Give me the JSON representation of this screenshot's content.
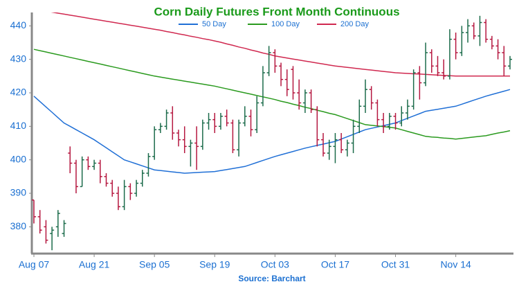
{
  "chart_data": {
    "type": "ohlc",
    "title": "Corn Daily Futures Front Month Continuous",
    "source": "Source: Barchart",
    "categories": [
      "Aug 07",
      null,
      null,
      null,
      null,
      null,
      null,
      null,
      null,
      null,
      "Aug 21",
      null,
      null,
      null,
      null,
      null,
      null,
      null,
      null,
      null,
      "Sep 05",
      null,
      null,
      null,
      null,
      null,
      null,
      null,
      null,
      null,
      "Sep 19",
      null,
      null,
      null,
      null,
      null,
      null,
      null,
      null,
      null,
      "Oct 03",
      null,
      null,
      null,
      null,
      null,
      null,
      null,
      null,
      null,
      "Oct 17",
      null,
      null,
      null,
      null,
      null,
      null,
      null,
      null,
      null,
      "Oct 31",
      null,
      null,
      null,
      null,
      null,
      null,
      null,
      null,
      null,
      "Nov 14",
      null,
      null,
      null,
      null,
      null,
      null,
      null,
      null,
      null
    ],
    "open": [
      388,
      383,
      380,
      378,
      380,
      378,
      402,
      399,
      392,
      400,
      398,
      399,
      395,
      393,
      390,
      386,
      392,
      390,
      393,
      396,
      401,
      409,
      410,
      414,
      408,
      406,
      404,
      405,
      404,
      411,
      412,
      410,
      413,
      411,
      403,
      411,
      413,
      409,
      417,
      426,
      432,
      428,
      424,
      427,
      420,
      417,
      420,
      415,
      406,
      402,
      404,
      406,
      403,
      405,
      410,
      416,
      421,
      417,
      412,
      410,
      413,
      411,
      414,
      416,
      426,
      423,
      432,
      428,
      426,
      425,
      436,
      432,
      438,
      440,
      437,
      441,
      436,
      434,
      432,
      428
    ],
    "high": [
      388,
      385,
      382,
      380,
      385,
      382,
      404,
      400,
      401,
      401,
      400,
      400,
      396,
      394,
      392,
      394,
      393,
      394,
      397,
      402,
      410,
      411,
      415,
      416,
      409,
      410,
      406,
      410,
      412,
      414,
      414,
      414,
      415,
      412,
      412,
      416,
      415,
      419,
      428,
      434,
      433,
      429,
      427,
      428,
      424,
      421,
      421,
      416,
      408,
      406,
      408,
      408,
      406,
      412,
      418,
      424,
      422,
      418,
      414,
      414,
      414,
      416,
      418,
      427,
      428,
      435,
      433,
      431,
      430,
      439,
      438,
      440,
      442,
      441,
      443,
      442,
      437,
      436,
      434,
      431
    ],
    "low": [
      381,
      378,
      375,
      373,
      377,
      377,
      396,
      390,
      392,
      397,
      397,
      393,
      392,
      389,
      385,
      385,
      388,
      389,
      392,
      395,
      400,
      408,
      409,
      406,
      404,
      402,
      398,
      397,
      403,
      409,
      408,
      409,
      410,
      402,
      401,
      410,
      407,
      408,
      416,
      425,
      426,
      422,
      419,
      418,
      415,
      414,
      414,
      404,
      401,
      400,
      399,
      402,
      401,
      402,
      408,
      414,
      415,
      410,
      408,
      409,
      409,
      410,
      412,
      415,
      418,
      422,
      426,
      425,
      424,
      424,
      430,
      431,
      435,
      436,
      434,
      435,
      433,
      430,
      425,
      427
    ],
    "close": [
      383,
      379,
      376,
      379,
      384,
      381,
      399,
      392,
      400,
      398,
      399,
      395,
      393,
      390,
      386,
      392,
      390,
      393,
      396,
      401,
      409,
      410,
      414,
      408,
      406,
      404,
      405,
      404,
      411,
      412,
      410,
      413,
      411,
      403,
      411,
      413,
      409,
      417,
      426,
      432,
      428,
      424,
      421,
      420,
      417,
      420,
      415,
      406,
      402,
      404,
      406,
      403,
      405,
      410,
      416,
      421,
      417,
      412,
      410,
      413,
      411,
      414,
      416,
      426,
      423,
      432,
      428,
      426,
      425,
      436,
      432,
      438,
      440,
      437,
      441,
      436,
      434,
      432,
      428,
      430
    ],
    "up_color": "#1b6b4a",
    "down_color": "#b5173f",
    "series": [
      {
        "name": "50 Day",
        "color": "#1f6fd6",
        "values": [
          419,
          417.4,
          415.8,
          414.2,
          412.6,
          411,
          410,
          409,
          408,
          407,
          406,
          404.8,
          403.6,
          402.4,
          401.2,
          400,
          399.4,
          398.8,
          398.2,
          397.6,
          397,
          396.8,
          396.6,
          396.4,
          396.2,
          396,
          396.1,
          396.2,
          396.3,
          396.4,
          396.5,
          396.8,
          397.1,
          397.4,
          397.7,
          398,
          398.6,
          399.2,
          399.8,
          400.4,
          401,
          401.5,
          402,
          402.5,
          403,
          403.5,
          403.9,
          404.3,
          404.7,
          405.1,
          405.5,
          406.2,
          406.9,
          407.6,
          408.3,
          409,
          409.4,
          409.8,
          410.2,
          410.6,
          411,
          411.7,
          412.4,
          413.1,
          413.8,
          414.5,
          414.8,
          415.1,
          415.4,
          415.7,
          416,
          416.6,
          417.2,
          417.8,
          418.4,
          419,
          419.5,
          420,
          420.5,
          421
        ]
      },
      {
        "name": "100 Day",
        "color": "#2a9a1e",
        "values": [
          433,
          432.6,
          432.2,
          431.8,
          431.4,
          431,
          430.6,
          430.2,
          429.8,
          429.4,
          429,
          428.6,
          428.2,
          427.8,
          427.4,
          427,
          426.6,
          426.2,
          425.8,
          425.4,
          425,
          424.7,
          424.4,
          424.1,
          423.8,
          423.5,
          423.2,
          422.9,
          422.6,
          422.3,
          422,
          421.6,
          421.2,
          420.8,
          420.4,
          420,
          419.6,
          419.2,
          418.8,
          418.4,
          418,
          417.5,
          417.1,
          416.6,
          416.2,
          415.7,
          415.3,
          414.8,
          414.4,
          413.9,
          413.5,
          412.9,
          412.3,
          411.7,
          411.1,
          410.5,
          410.3,
          410.1,
          409.9,
          409.7,
          409.5,
          409,
          408.5,
          408,
          407.5,
          407,
          406.8,
          406.7,
          406.5,
          406.4,
          406.2,
          406.4,
          406.6,
          406.8,
          407,
          407.2,
          407.6,
          408,
          408.3,
          408.7
        ]
      },
      {
        "name": "200 Day",
        "color": "#d0284f",
        "values": [
          445,
          444.7,
          444.4,
          444.1,
          443.8,
          443.5,
          443.2,
          442.9,
          442.6,
          442.3,
          442,
          441.7,
          441.4,
          441.1,
          440.8,
          440.5,
          440.2,
          439.9,
          439.6,
          439.3,
          439,
          438.7,
          438.3,
          438,
          437.6,
          437.3,
          436.9,
          436.6,
          436.2,
          435.9,
          435.5,
          435.1,
          434.6,
          434.2,
          433.7,
          433.3,
          432.8,
          432.4,
          431.9,
          431.5,
          431,
          430.7,
          430.4,
          430.1,
          429.8,
          429.5,
          429.2,
          428.9,
          428.6,
          428.3,
          428,
          427.8,
          427.6,
          427.4,
          427.2,
          427,
          426.8,
          426.6,
          426.4,
          426.2,
          426,
          425.9,
          425.8,
          425.7,
          425.6,
          425.5,
          425.4,
          425.3,
          425.2,
          425.1,
          425,
          425,
          425,
          425,
          425,
          425,
          425,
          425,
          425,
          425
        ]
      }
    ],
    "ylim": [
      372,
      444
    ],
    "yticks": [
      380,
      390,
      400,
      410,
      420,
      430,
      440
    ],
    "grid": false
  }
}
